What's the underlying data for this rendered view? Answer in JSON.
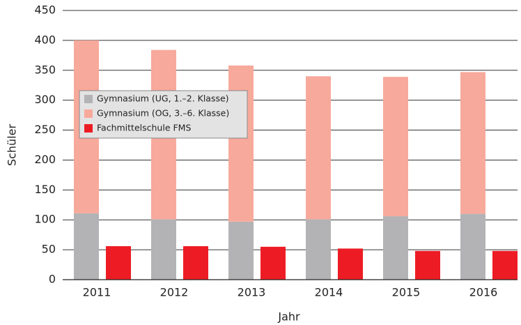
{
  "chart_data": {
    "type": "bar",
    "xlabel": "Jahr",
    "ylabel": "Schüler",
    "categories": [
      "2011",
      "2012",
      "2013",
      "2014",
      "2015",
      "2016"
    ],
    "series": [
      {
        "name": "Gymnasium (UG, 1.–2. Klasse)",
        "color": "#b3b3b5",
        "stack": 0,
        "values": [
          111,
          101,
          97,
          101,
          106,
          110
        ]
      },
      {
        "name": "Gymnasium (OG, 3.–6. Klasse)",
        "color": "#f7a99b",
        "stack": 0,
        "values": [
          289,
          283,
          261,
          239,
          233,
          237
        ]
      },
      {
        "name": "Fachmittelschule FMS",
        "color": "#ed1c24",
        "stack": 1,
        "values": [
          56,
          56,
          55,
          52,
          48,
          48
        ]
      }
    ],
    "ylim": [
      0,
      450
    ],
    "yticks": [
      0,
      50,
      100,
      150,
      200,
      250,
      300,
      350,
      400,
      450
    ],
    "grid": true,
    "legend": "upper left"
  }
}
